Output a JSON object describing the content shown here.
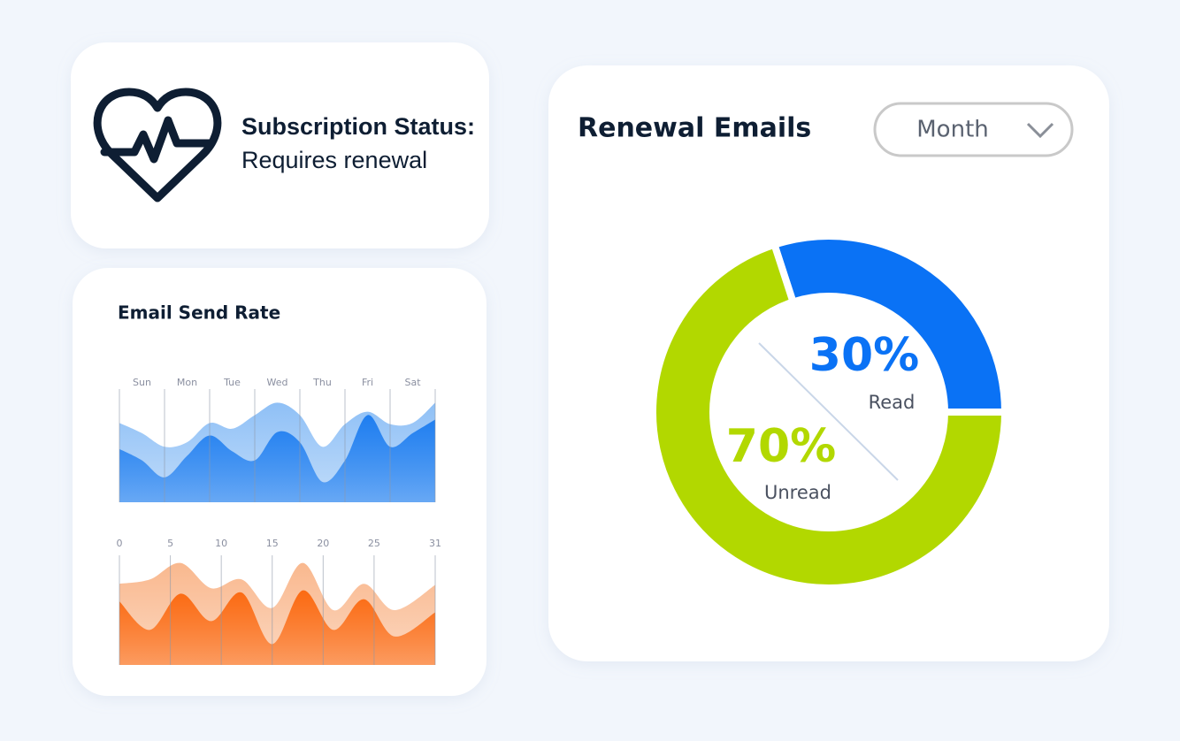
{
  "status_card": {
    "title": "Subscription Status:",
    "text": "Requires renewal"
  },
  "send_rate": {
    "title": "Email Send Rate",
    "weekly": {
      "type": "area",
      "categories": [
        "Sun",
        "Mon",
        "Tue",
        "Wed",
        "Thu",
        "Fri",
        "Sat"
      ],
      "x": [
        0,
        0.5,
        1,
        1.5,
        2,
        2.5,
        3,
        3.5,
        4,
        4.5,
        5,
        5.5,
        6,
        6.5,
        7
      ],
      "xlim": [
        0,
        7
      ],
      "ylim": [
        0,
        100
      ],
      "series": [
        {
          "color": "#8fc0f6",
          "values": [
            70,
            61,
            49,
            53,
            70,
            65,
            77,
            88,
            77,
            49,
            69,
            80,
            69,
            70,
            88
          ]
        },
        {
          "color": "#1f7ef0",
          "values": [
            47,
            37,
            22,
            41,
            59,
            45,
            37,
            62,
            53,
            18,
            37,
            77,
            49,
            61,
            73
          ]
        }
      ]
    },
    "monthly": {
      "type": "area",
      "x": [
        0,
        3,
        6,
        9,
        12,
        15,
        18,
        21,
        24,
        27,
        31
      ],
      "xlim": [
        0,
        31
      ],
      "xticks": [
        0,
        5,
        10,
        15,
        20,
        25,
        31
      ],
      "ylim": [
        0,
        100
      ],
      "series": [
        {
          "color": "#f9b88e",
          "values": [
            74,
            78,
            93,
            70,
            78,
            52,
            93,
            50,
            74,
            50,
            73
          ]
        },
        {
          "color": "#fb6a12",
          "values": [
            58,
            32,
            65,
            40,
            66,
            19,
            68,
            32,
            60,
            26,
            48
          ]
        }
      ]
    }
  },
  "renewal": {
    "title": "Renewal Emails",
    "dropdown": "Month",
    "chart": {
      "type": "pie",
      "categories": [
        "Read",
        "Unread"
      ],
      "values": [
        30,
        70
      ],
      "value_labels": [
        "30%",
        "70%"
      ],
      "colors": [
        "#0a72f5",
        "#b2d800"
      ]
    }
  }
}
